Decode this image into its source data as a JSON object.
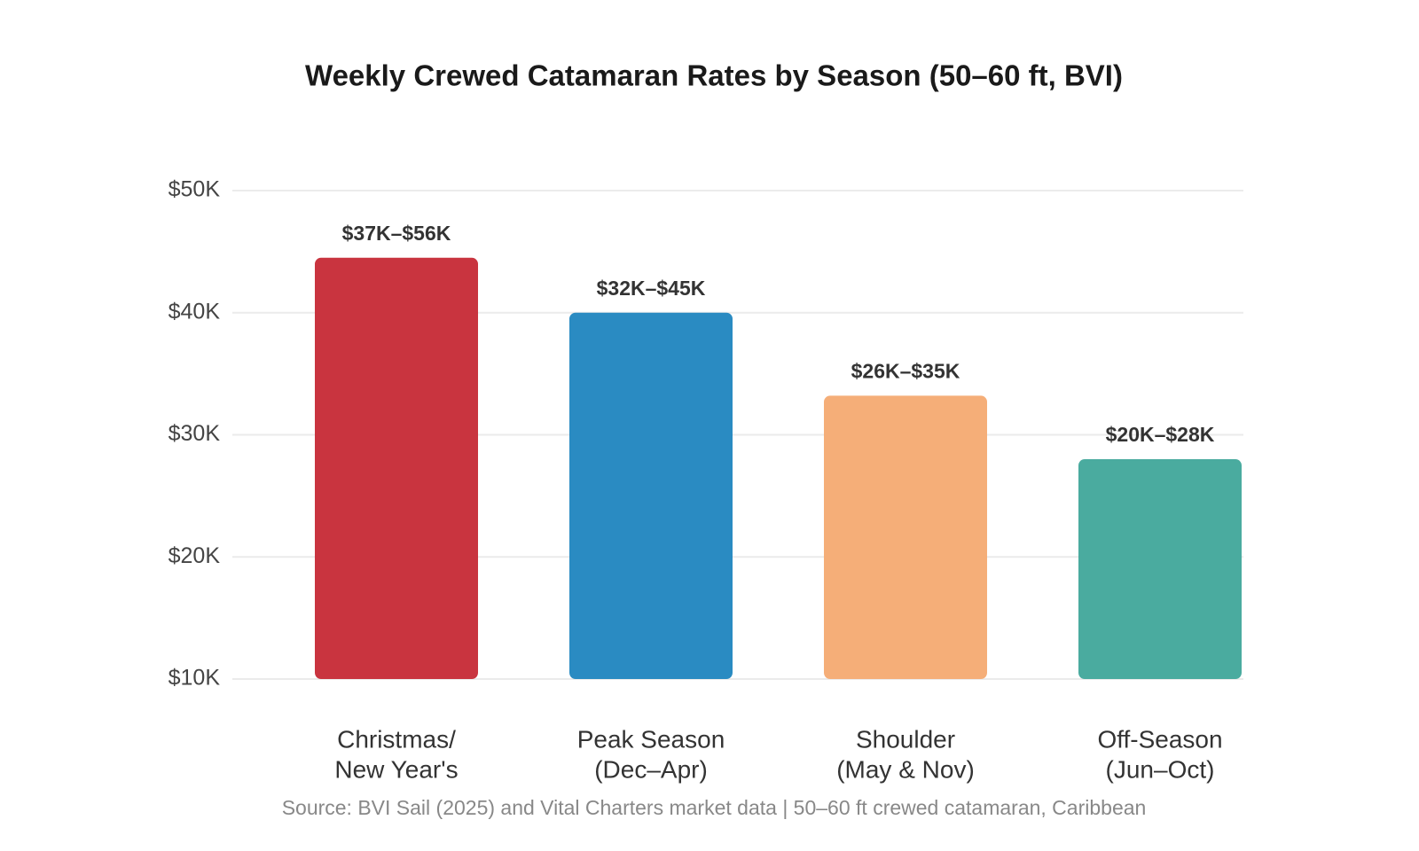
{
  "chart_data": {
    "type": "bar",
    "title": "Weekly Crewed Catamaran Rates by Season (50–60 ft, BVI)",
    "categories": [
      [
        "Christmas/",
        "New Year's"
      ],
      [
        "Peak Season",
        "(Dec–Apr)"
      ],
      [
        "Shoulder",
        "(May & Nov)"
      ],
      [
        "Off-Season",
        "(Jun–Oct)"
      ]
    ],
    "values": [
      44500,
      40000,
      33200,
      28000
    ],
    "bar_labels": [
      "$37K–$56K",
      "$32K–$45K",
      "$26K–$35K",
      "$20K–$28K"
    ],
    "colors": [
      "#c9343f",
      "#2a8bc2",
      "#f5ae78",
      "#4aab9f"
    ],
    "ylim": [
      10000,
      50000
    ],
    "yticks": [
      {
        "value": 10000,
        "label": "$10K"
      },
      {
        "value": 20000,
        "label": "$20K"
      },
      {
        "value": 30000,
        "label": "$30K"
      },
      {
        "value": 40000,
        "label": "$40K"
      },
      {
        "value": 50000,
        "label": "$50K"
      }
    ],
    "grid": true,
    "source": "Source: BVI Sail (2025) and Vital Charters market data | 50–60 ft crewed catamaran, Caribbean"
  }
}
